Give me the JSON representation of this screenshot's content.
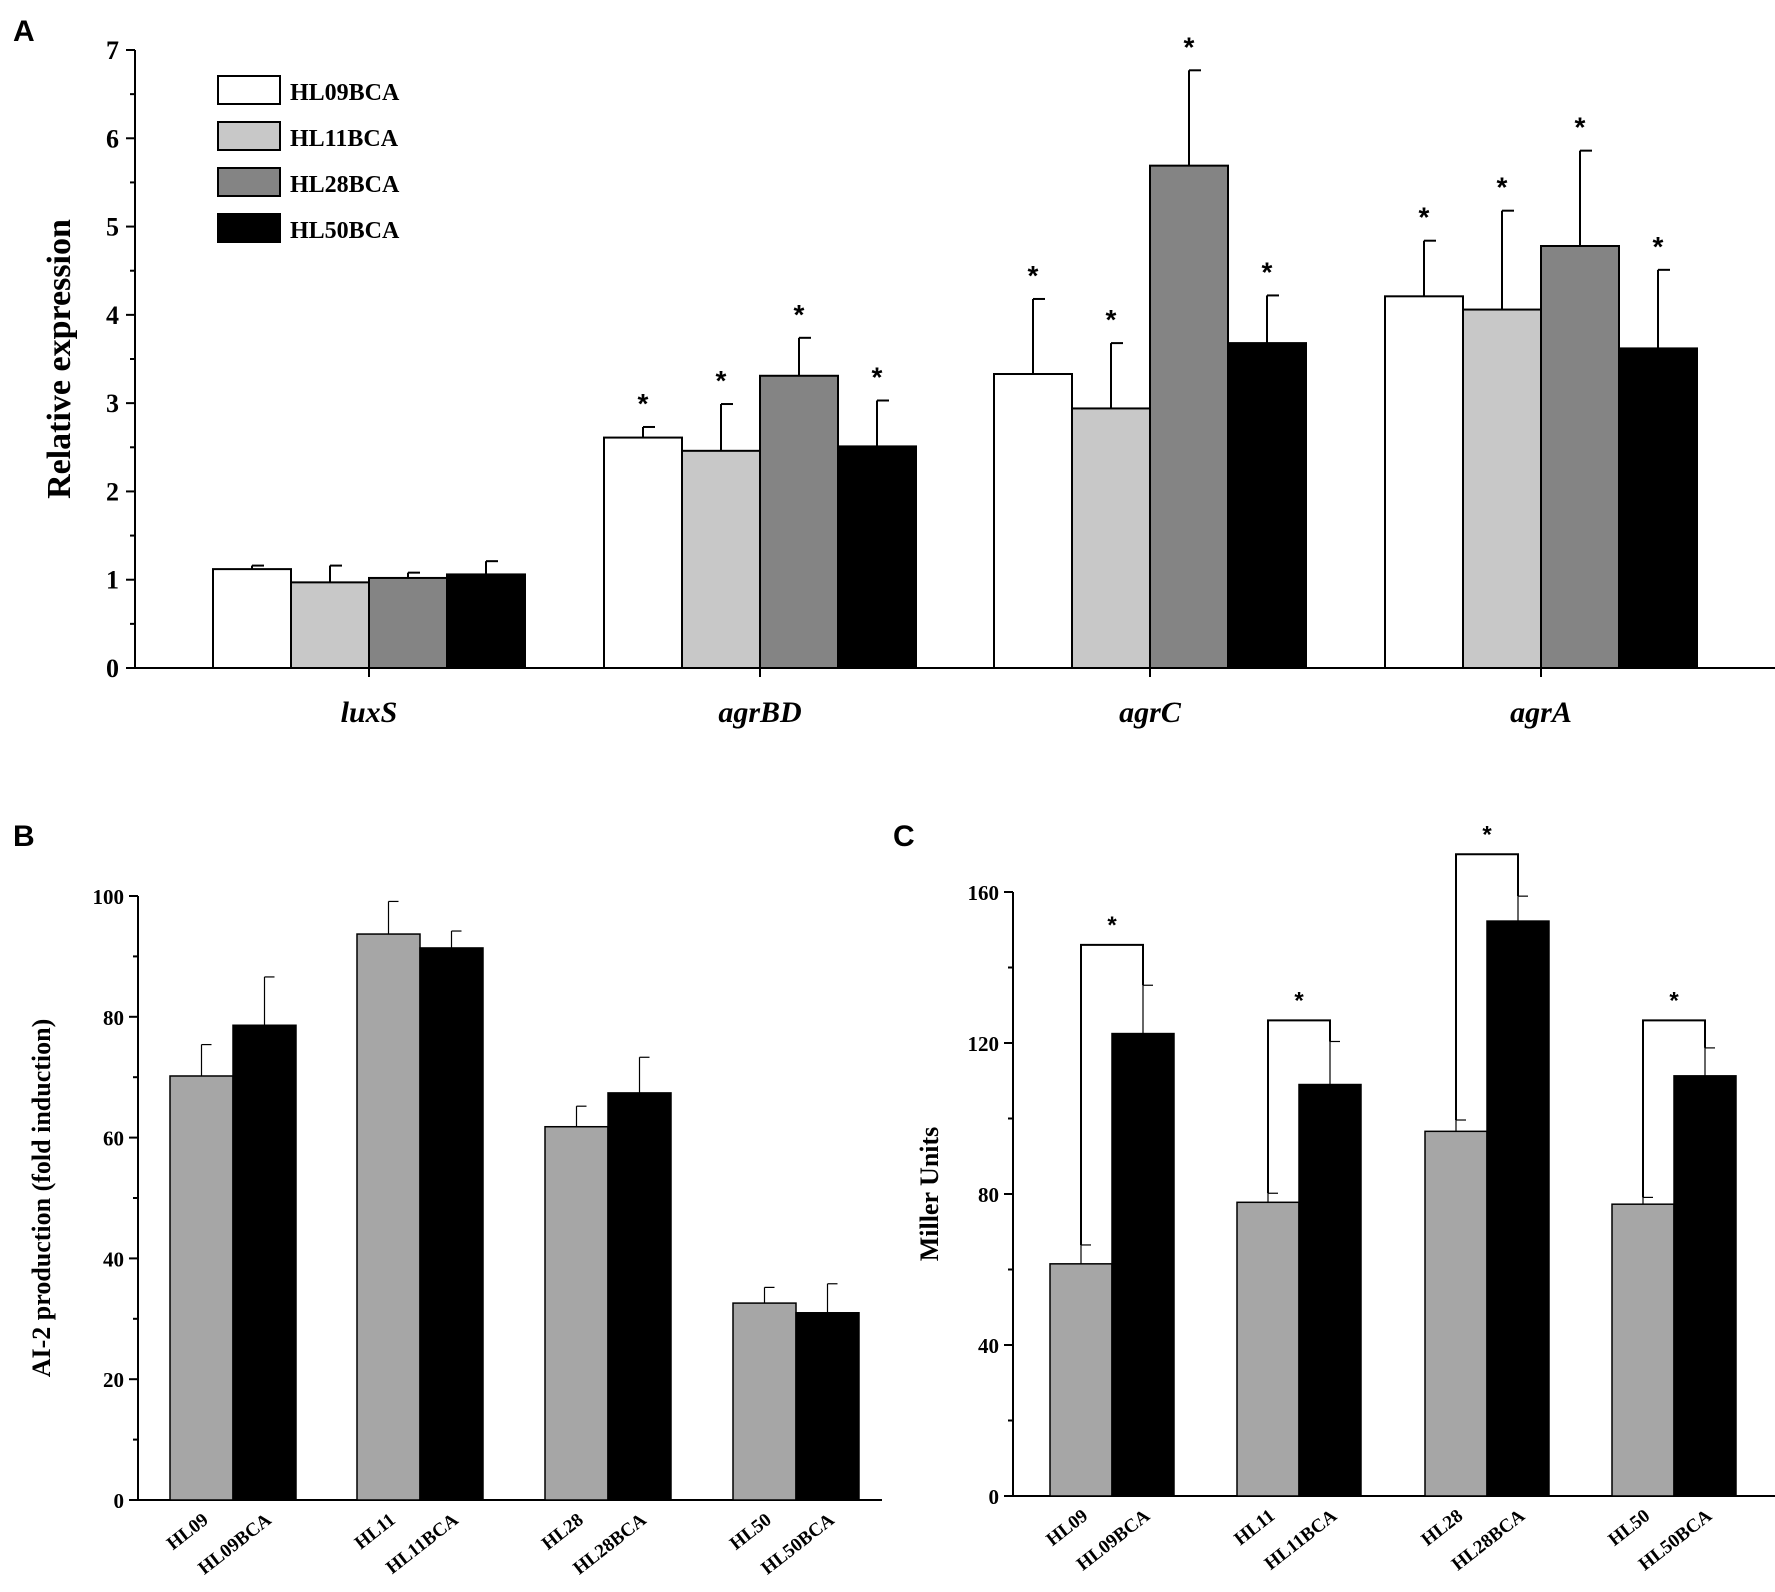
{
  "figure": {
    "title": ""
  },
  "colors": {
    "white": "#ffffff",
    "light_gray": "#c8c8c8",
    "dark_gray": "#848484",
    "black": "#000000",
    "medium_gray": "#a6a6a6"
  },
  "chart_data": [
    {
      "panel": "A",
      "type": "bar",
      "title": "",
      "xlabel": "",
      "ylabel": "Relative expression",
      "ylim": [
        0,
        7
      ],
      "yticks": [
        0,
        1,
        2,
        3,
        4,
        5,
        6,
        7
      ],
      "ytick_labels": [
        "0",
        "1",
        "2",
        "3",
        "4",
        "5",
        "6",
        "7"
      ],
      "categories": [
        "luxS",
        "agrBD",
        "agrC",
        "agrA"
      ],
      "legend": {
        "placement": "top-left",
        "entries": [
          "HL09BCA",
          "HL11BCA",
          "HL28BCA",
          "HL50BCA"
        ]
      },
      "series": [
        {
          "name": "HL09BCA",
          "color": "#ffffff",
          "values": [
            1.12,
            2.61,
            3.33,
            4.21
          ],
          "errors": [
            0.04,
            0.12,
            0.85,
            0.63
          ],
          "sig": [
            false,
            true,
            true,
            true
          ]
        },
        {
          "name": "HL11BCA",
          "color": "#c8c8c8",
          "values": [
            0.97,
            2.46,
            2.94,
            4.06
          ],
          "errors": [
            0.19,
            0.53,
            0.74,
            1.12
          ],
          "sig": [
            false,
            true,
            true,
            true
          ]
        },
        {
          "name": "HL28BCA",
          "color": "#848484",
          "values": [
            1.02,
            3.31,
            5.69,
            4.78
          ],
          "errors": [
            0.06,
            0.43,
            1.08,
            1.08
          ],
          "sig": [
            false,
            true,
            true,
            true
          ]
        },
        {
          "name": "HL50BCA",
          "color": "#000000",
          "values": [
            1.06,
            2.51,
            3.68,
            3.62
          ],
          "errors": [
            0.15,
            0.52,
            0.54,
            0.89
          ],
          "sig": [
            false,
            true,
            true,
            true
          ]
        }
      ],
      "annotation": "*"
    },
    {
      "panel": "B",
      "type": "bar",
      "title": "",
      "xlabel": "",
      "ylabel": "AI-2 production (fold induction)",
      "ylim": [
        0,
        100
      ],
      "yticks": [
        0,
        20,
        40,
        60,
        80,
        100
      ],
      "ytick_labels": [
        "0",
        "20",
        "40",
        "60",
        "80",
        "100"
      ],
      "categories": [
        "HL09",
        "HL09BCA",
        "HL11",
        "HL11BCA",
        "HL28",
        "HL28BCA",
        "HL50",
        "HL50BCA"
      ],
      "values": [
        70.2,
        78.6,
        93.7,
        91.4,
        61.8,
        67.4,
        32.6,
        31.0
      ],
      "errors": [
        5.2,
        8.0,
        5.4,
        2.8,
        3.4,
        5.9,
        2.6,
        4.8
      ],
      "bar_colors": [
        "#a6a6a6",
        "#000000",
        "#a6a6a6",
        "#000000",
        "#a6a6a6",
        "#000000",
        "#a6a6a6",
        "#000000"
      ]
    },
    {
      "panel": "C",
      "type": "bar",
      "title": "",
      "xlabel": "",
      "ylabel": "Miller Units",
      "ylim": [
        0,
        160
      ],
      "yticks": [
        0,
        40,
        80,
        120,
        160
      ],
      "ytick_labels": [
        "0",
        "40",
        "80",
        "120",
        "160"
      ],
      "categories": [
        "HL09",
        "HL09BCA",
        "HL11",
        "HL11BCA",
        "HL28",
        "HL28BCA",
        "HL50",
        "HL50BCA"
      ],
      "values": [
        61.5,
        122.5,
        77.8,
        109.0,
        96.6,
        152.3,
        77.3,
        111.3
      ],
      "errors": [
        5.0,
        12.8,
        2.4,
        11.4,
        3.0,
        6.6,
        1.8,
        7.4
      ],
      "bar_colors": [
        "#a6a6a6",
        "#000000",
        "#a6a6a6",
        "#000000",
        "#a6a6a6",
        "#000000",
        "#a6a6a6",
        "#000000"
      ],
      "brackets": [
        {
          "pair": [
            0,
            1
          ],
          "label": "*",
          "level": 146
        },
        {
          "pair": [
            2,
            3
          ],
          "label": "*",
          "level": 126
        },
        {
          "pair": [
            4,
            5
          ],
          "label": "*",
          "level": 170
        },
        {
          "pair": [
            6,
            7
          ],
          "label": "*",
          "level": 126
        }
      ]
    }
  ]
}
